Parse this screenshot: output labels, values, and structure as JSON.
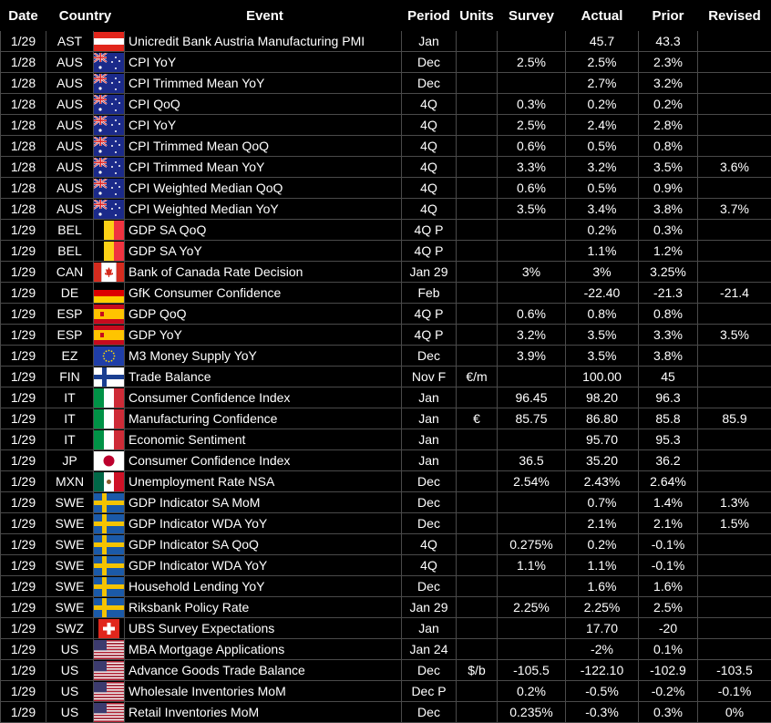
{
  "table": {
    "headers": [
      "Date",
      "Country",
      "Event",
      "Period",
      "Units",
      "Survey",
      "Actual",
      "Prior",
      "Revised"
    ],
    "rows": [
      [
        "1/29",
        "AST",
        "Unicredit Bank Austria Manufacturing PMI",
        "Jan",
        null,
        null,
        "45.7",
        "43.3",
        null
      ],
      [
        "1/28",
        "AUS",
        "CPI YoY",
        "Dec",
        null,
        "2.5%",
        "2.5%",
        "2.3%",
        null
      ],
      [
        "1/28",
        "AUS",
        "CPI Trimmed Mean YoY",
        "Dec",
        null,
        null,
        "2.7%",
        "3.2%",
        null
      ],
      [
        "1/28",
        "AUS",
        "CPI QoQ",
        "4Q",
        null,
        "0.3%",
        "0.2%",
        "0.2%",
        null
      ],
      [
        "1/28",
        "AUS",
        "CPI YoY",
        "4Q",
        null,
        "2.5%",
        "2.4%",
        "2.8%",
        null
      ],
      [
        "1/28",
        "AUS",
        "CPI Trimmed Mean QoQ",
        "4Q",
        null,
        "0.6%",
        "0.5%",
        "0.8%",
        null
      ],
      [
        "1/28",
        "AUS",
        "CPI Trimmed Mean YoY",
        "4Q",
        null,
        "3.3%",
        "3.2%",
        "3.5%",
        "3.6%"
      ],
      [
        "1/28",
        "AUS",
        "CPI Weighted Median QoQ",
        "4Q",
        null,
        "0.6%",
        "0.5%",
        "0.9%",
        null
      ],
      [
        "1/28",
        "AUS",
        "CPI Weighted Median YoY",
        "4Q",
        null,
        "3.5%",
        "3.4%",
        "3.8%",
        "3.7%"
      ],
      [
        "1/29",
        "BEL",
        "GDP SA QoQ",
        "4Q P",
        null,
        null,
        "0.2%",
        "0.3%",
        null
      ],
      [
        "1/29",
        "BEL",
        "GDP SA YoY",
        "4Q P",
        null,
        null,
        "1.1%",
        "1.2%",
        null
      ],
      [
        "1/29",
        "CAN",
        "Bank of Canada Rate Decision",
        "Jan 29",
        null,
        "3%",
        "3%",
        "3.25%",
        null
      ],
      [
        "1/29",
        "DE",
        "GfK Consumer Confidence",
        "Feb",
        null,
        null,
        "-22.40",
        "-21.3",
        "-21.4"
      ],
      [
        "1/29",
        "ESP",
        "GDP QoQ",
        "4Q P",
        null,
        "0.6%",
        "0.8%",
        "0.8%",
        null
      ],
      [
        "1/29",
        "ESP",
        "GDP YoY",
        "4Q P",
        null,
        "3.2%",
        "3.5%",
        "3.3%",
        "3.5%"
      ],
      [
        "1/29",
        "EZ",
        "M3 Money Supply YoY",
        "Dec",
        null,
        "3.9%",
        "3.5%",
        "3.8%",
        null
      ],
      [
        "1/29",
        "FIN",
        "Trade Balance",
        "Nov F",
        "€/m",
        null,
        "100.00",
        "45",
        null
      ],
      [
        "1/29",
        "IT",
        "Consumer Confidence Index",
        "Jan",
        null,
        "96.45",
        "98.20",
        "96.3",
        null
      ],
      [
        "1/29",
        "IT",
        "Manufacturing Confidence",
        "Jan",
        "€",
        "85.75",
        "86.80",
        "85.8",
        "85.9"
      ],
      [
        "1/29",
        "IT",
        "Economic Sentiment",
        "Jan",
        null,
        null,
        "95.70",
        "95.3",
        null
      ],
      [
        "1/29",
        "JP",
        "Consumer Confidence Index",
        "Jan",
        null,
        "36.5",
        "35.20",
        "36.2",
        null
      ],
      [
        "1/29",
        "MXN",
        "Unemployment Rate NSA",
        "Dec",
        null,
        "2.54%",
        "2.43%",
        "2.64%",
        null
      ],
      [
        "1/29",
        "SWE",
        "GDP Indicator SA MoM",
        "Dec",
        null,
        null,
        "0.7%",
        "1.4%",
        "1.3%"
      ],
      [
        "1/29",
        "SWE",
        "GDP Indicator WDA YoY",
        "Dec",
        null,
        null,
        "2.1%",
        "2.1%",
        "1.5%"
      ],
      [
        "1/29",
        "SWE",
        "GDP Indicator SA QoQ",
        "4Q",
        null,
        "0.275%",
        "0.2%",
        "-0.1%",
        null
      ],
      [
        "1/29",
        "SWE",
        "GDP Indicator WDA YoY",
        "4Q",
        null,
        "1.1%",
        "1.1%",
        "-0.1%",
        null
      ],
      [
        "1/29",
        "SWE",
        "Household Lending YoY",
        "Dec",
        null,
        null,
        "1.6%",
        "1.6%",
        null
      ],
      [
        "1/29",
        "SWE",
        "Riksbank Policy Rate",
        "Jan 29",
        null,
        "2.25%",
        "2.25%",
        "2.5%",
        null
      ],
      [
        "1/29",
        "SWZ",
        "UBS Survey Expectations",
        "Jan",
        null,
        null,
        "17.70",
        "-20",
        null
      ],
      [
        "1/29",
        "US",
        "MBA Mortgage Applications",
        "Jan 24",
        null,
        null,
        "-2%",
        "0.1%",
        null
      ],
      [
        "1/29",
        "US",
        "Advance Goods Trade Balance",
        "Dec",
        "$/b",
        "-105.5",
        "-122.10",
        "-102.9",
        "-103.5"
      ],
      [
        "1/29",
        "US",
        "Wholesale Inventories MoM",
        "Dec P",
        null,
        "0.2%",
        "-0.5%",
        "-0.2%",
        "-0.1%"
      ],
      [
        "1/29",
        "US",
        "Retail Inventories MoM",
        "Dec",
        null,
        "0.235%",
        "-0.3%",
        "0.3%",
        "0%"
      ]
    ]
  }
}
